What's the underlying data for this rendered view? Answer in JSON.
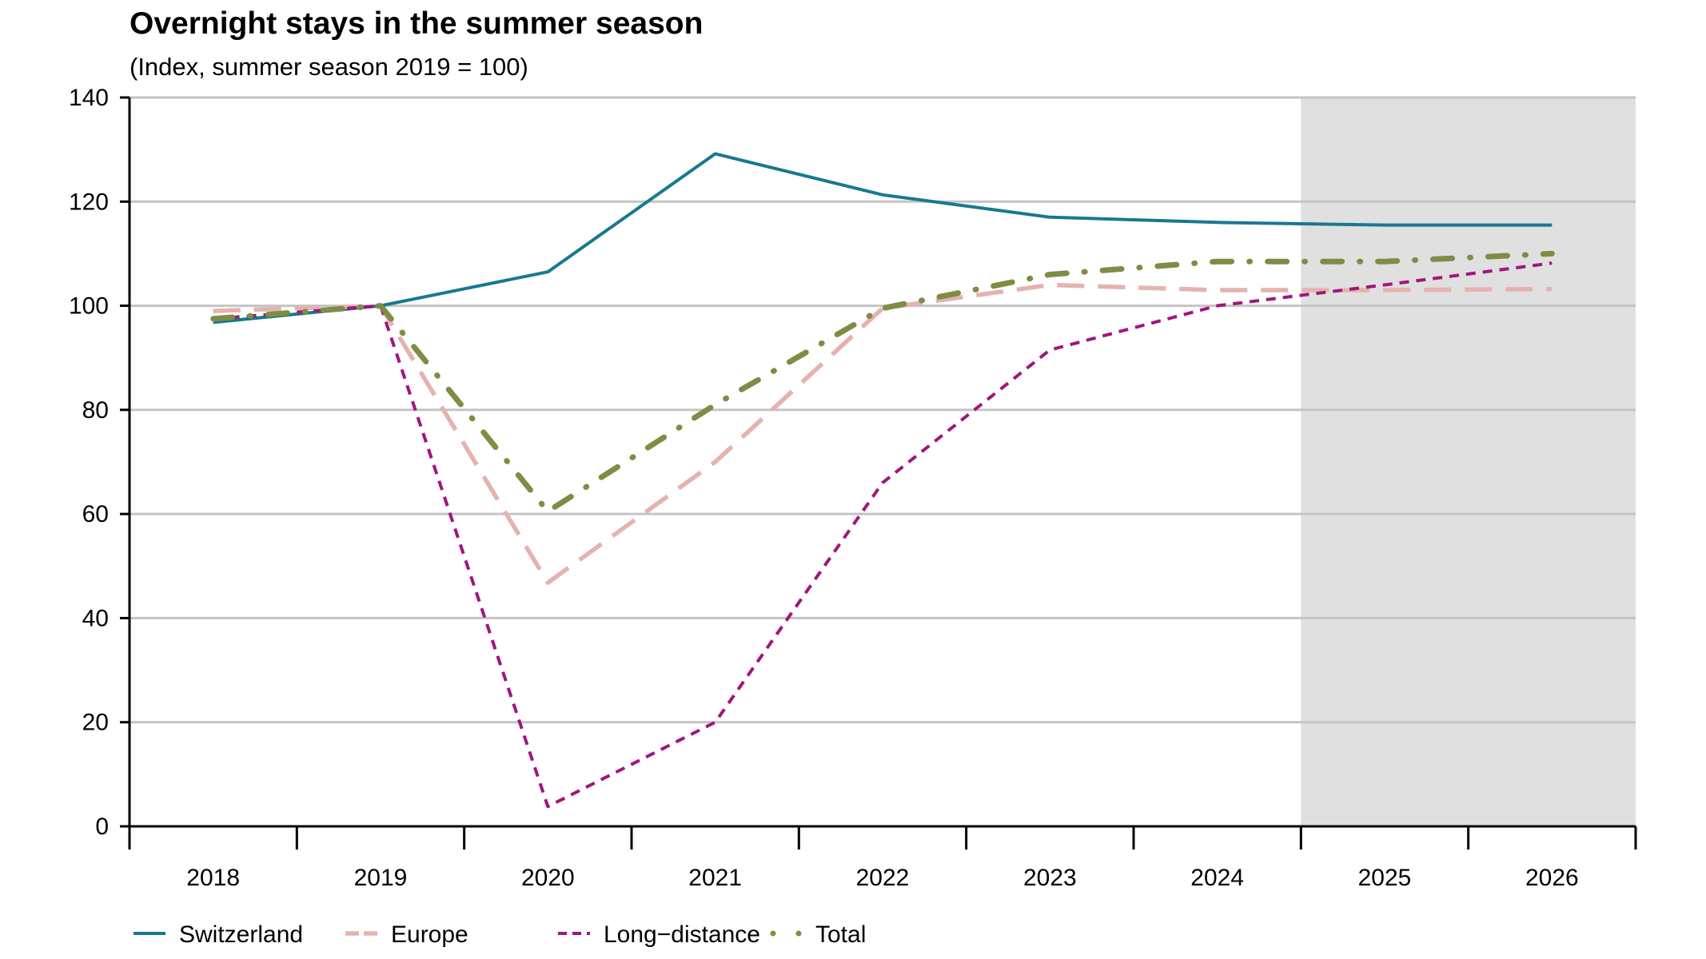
{
  "chart_data": {
    "type": "line",
    "title": "Overnight stays in the summer season",
    "subtitle": "(Index, summer season 2019 = 100)",
    "xlabel": "",
    "ylabel": "",
    "categories": [
      "2018",
      "2019",
      "2020",
      "2021",
      "2022",
      "2023",
      "2024",
      "2025",
      "2026"
    ],
    "ylim": [
      0,
      140
    ],
    "yticks": [
      0,
      20,
      40,
      60,
      80,
      100,
      120,
      140
    ],
    "grid": true,
    "forecast_shaded_from": "2025",
    "legend_position": "bottom",
    "series": [
      {
        "name": "Switzerland",
        "color": "#17798f",
        "style": "solid",
        "values": [
          96.8,
          100,
          106.5,
          129.2,
          121.3,
          117.0,
          116.0,
          115.5,
          115.5
        ]
      },
      {
        "name": "Europe",
        "color": "#e4b3b0",
        "style": "dashed",
        "values": [
          99.0,
          100,
          46.8,
          70.0,
          99.5,
          104.0,
          103.0,
          103.0,
          103.2
        ]
      },
      {
        "name": "Long−distance",
        "color": "#a0167a",
        "style": "dotted",
        "values": [
          97.5,
          100,
          3.8,
          20.0,
          66.0,
          91.5,
          100.0,
          104.0,
          108.2
        ]
      },
      {
        "name": "Total",
        "color": "#7f8c45",
        "style": "dashdot",
        "values": [
          97.5,
          100,
          60.5,
          81.0,
          99.5,
          106.0,
          108.5,
          108.5,
          110.0
        ]
      }
    ]
  }
}
